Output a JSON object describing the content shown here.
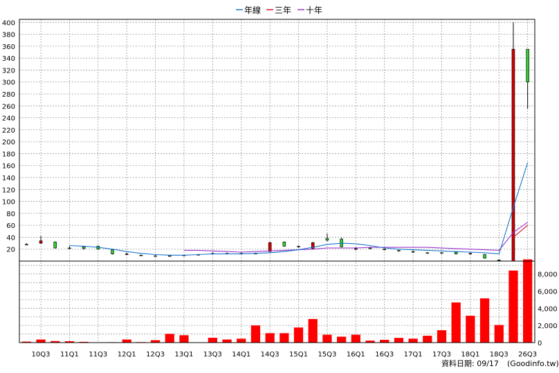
{
  "legend": {
    "items": [
      {
        "label": "年線",
        "color": "#1874cd"
      },
      {
        "label": "三年",
        "color": "#dc143c"
      },
      {
        "label": "十年",
        "color": "#9932cc"
      }
    ]
  },
  "footer": {
    "label": "資料日期: 09/17",
    "source": "(Goodinfo.tw)"
  },
  "chart_data": {
    "type": "candlestick",
    "price_axis": {
      "ticks": [
        20,
        40,
        60,
        80,
        100,
        120,
        140,
        160,
        180,
        200,
        220,
        240,
        260,
        280,
        300,
        320,
        340,
        360,
        380,
        400
      ],
      "ylim": [
        0,
        405
      ]
    },
    "volume_axis": {
      "tick_labels": [
        "0",
        "2,000",
        "4,000",
        "6,000",
        "8,000"
      ],
      "ylim": [
        0,
        9500
      ]
    },
    "x_tick_labels": [
      "10Q3",
      "11Q1",
      "11Q3",
      "12Q1",
      "12Q3",
      "13Q1",
      "13Q3",
      "14Q1",
      "14Q3",
      "15Q1",
      "15Q3",
      "16Q1",
      "16Q3",
      "17Q1",
      "17Q3",
      "18Q1",
      "18Q3",
      "26Q3"
    ],
    "bars": [
      {
        "o": 28,
        "h": 30,
        "l": 27,
        "c": 28
      },
      {
        "o": 34,
        "h": 42,
        "l": 29,
        "c": 30
      },
      {
        "o": 22,
        "h": 33,
        "l": 21,
        "c": 32
      },
      {
        "o": 22,
        "h": 25,
        "l": 20,
        "c": 22
      },
      {
        "o": 21,
        "h": 25,
        "l": 19,
        "c": 24
      },
      {
        "o": 20,
        "h": 26,
        "l": 19,
        "c": 25
      },
      {
        "o": 12,
        "h": 20,
        "l": 11,
        "c": 19
      },
      {
        "o": 12,
        "h": 14,
        "l": 10,
        "c": 11
      },
      {
        "o": 10,
        "h": 11,
        "l": 9,
        "c": 10
      },
      {
        "o": 9,
        "h": 10,
        "l": 8,
        "c": 9
      },
      {
        "o": 9,
        "h": 10,
        "l": 8,
        "c": 9
      },
      {
        "o": 10,
        "h": 11,
        "l": 9,
        "c": 10
      },
      {
        "o": 11,
        "h": 12,
        "l": 10,
        "c": 11
      },
      {
        "o": 13,
        "h": 14,
        "l": 12,
        "c": 13
      },
      {
        "o": 13,
        "h": 14,
        "l": 12,
        "c": 13
      },
      {
        "o": 13,
        "h": 14,
        "l": 12,
        "c": 13
      },
      {
        "o": 13,
        "h": 14,
        "l": 12,
        "c": 13
      },
      {
        "o": 31,
        "h": 32,
        "l": 15,
        "c": 16
      },
      {
        "o": 25,
        "h": 33,
        "l": 24,
        "c": 32
      },
      {
        "o": 24,
        "h": 26,
        "l": 22,
        "c": 25
      },
      {
        "o": 31,
        "h": 32,
        "l": 19,
        "c": 21
      },
      {
        "o": 35,
        "h": 46,
        "l": 33,
        "c": 38
      },
      {
        "o": 24,
        "h": 39,
        "l": 23,
        "c": 37
      },
      {
        "o": 21,
        "h": 23,
        "l": 18,
        "c": 20
      },
      {
        "o": 21,
        "h": 23,
        "l": 20,
        "c": 22
      },
      {
        "o": 19,
        "h": 21,
        "l": 18,
        "c": 20
      },
      {
        "o": 17,
        "h": 19,
        "l": 16,
        "c": 18
      },
      {
        "o": 15,
        "h": 18,
        "l": 14,
        "c": 16
      },
      {
        "o": 14,
        "h": 15,
        "l": 13,
        "c": 14
      },
      {
        "o": 14,
        "h": 15,
        "l": 13,
        "c": 14
      },
      {
        "o": 12,
        "h": 16,
        "l": 11,
        "c": 15
      },
      {
        "o": 13,
        "h": 14,
        "l": 11,
        "c": 12
      },
      {
        "o": 5,
        "h": 12,
        "l": 4,
        "c": 11
      },
      {
        "o": 2,
        "h": 3,
        "l": 1,
        "c": 2
      },
      {
        "o": 355,
        "h": 400,
        "l": 0,
        "c": 0
      },
      {
        "o": 300,
        "h": 355,
        "l": 255,
        "c": 355
      }
    ],
    "annual_ma": [
      null,
      null,
      null,
      26,
      25,
      23,
      20,
      16,
      13,
      11,
      10,
      10,
      11,
      12,
      12,
      12,
      13,
      14,
      16,
      19,
      23,
      28,
      30,
      29,
      26,
      22,
      20,
      19,
      18,
      17,
      16,
      15,
      14,
      12,
      90,
      165
    ],
    "three_year_ma": [
      null,
      null,
      null,
      null,
      null,
      null,
      null,
      null,
      null,
      null,
      null,
      null,
      null,
      null,
      null,
      null,
      null,
      null,
      null,
      null,
      null,
      null,
      null,
      null,
      null,
      null,
      null,
      null,
      null,
      null,
      null,
      null,
      null,
      null,
      40,
      60
    ],
    "ten_year_ma": [
      null,
      null,
      null,
      null,
      null,
      null,
      null,
      null,
      null,
      null,
      null,
      18,
      18,
      17,
      16,
      15,
      16,
      17,
      18,
      19,
      20,
      22,
      22,
      22,
      23,
      23,
      23,
      23,
      23,
      22,
      21,
      20,
      19,
      18,
      48,
      65
    ],
    "volume": [
      120,
      360,
      180,
      160,
      90,
      30,
      50,
      360,
      60,
      280,
      1020,
      860,
      40,
      560,
      360,
      460,
      2000,
      1100,
      1100,
      1760,
      2750,
      920,
      690,
      920,
      230,
      320,
      550,
      460,
      800,
      1440,
      4680,
      3130,
      5160,
      2050,
      8400,
      9700
    ]
  }
}
